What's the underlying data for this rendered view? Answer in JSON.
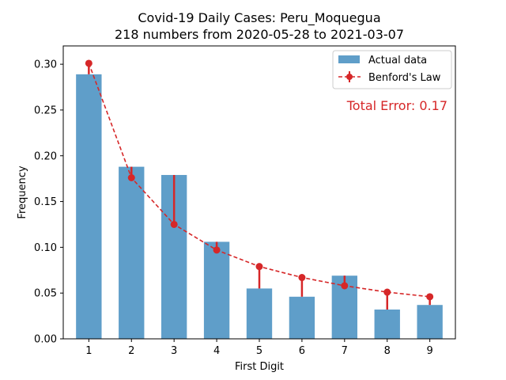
{
  "chart_data": {
    "type": "bar",
    "title": "Covid-19 Daily Cases: Peru_Moquegua",
    "subtitle": "218 numbers from 2020-05-28 to 2021-03-07",
    "xlabel": "First Digit",
    "ylabel": "Frequency",
    "categories": [
      "1",
      "2",
      "3",
      "4",
      "5",
      "6",
      "7",
      "8",
      "9"
    ],
    "x": [
      1,
      2,
      3,
      4,
      5,
      6,
      7,
      8,
      9
    ],
    "ylim": [
      0,
      0.32
    ],
    "yticks": [
      0.0,
      0.05,
      0.1,
      0.15,
      0.2,
      0.25,
      0.3
    ],
    "ytick_labels": [
      "0.00",
      "0.05",
      "0.10",
      "0.15",
      "0.20",
      "0.25",
      "0.30"
    ],
    "grid": false,
    "legend_position": "top-right",
    "series": [
      {
        "name": "Actual data",
        "type": "bar",
        "color": "#5f9ec9",
        "values": [
          0.289,
          0.188,
          0.179,
          0.106,
          0.055,
          0.046,
          0.069,
          0.032,
          0.037
        ]
      },
      {
        "name": "Benford's Law",
        "type": "line",
        "color": "#d62728",
        "values": [
          0.301,
          0.176,
          0.125,
          0.097,
          0.079,
          0.067,
          0.058,
          0.051,
          0.046
        ]
      }
    ],
    "annotation": {
      "text": "Total Error: 0.17",
      "color": "#d62728"
    }
  }
}
